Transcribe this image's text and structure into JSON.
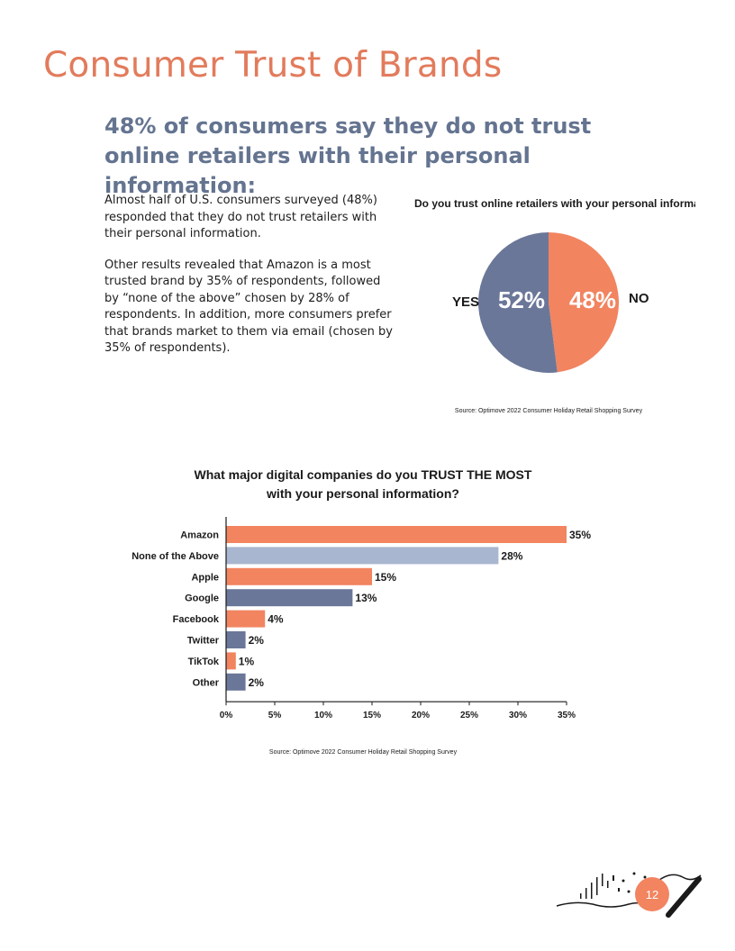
{
  "page": {
    "title": "Consumer Trust of Brands",
    "subtitle": "48% of consumers say they do not trust online retailers with their personal information:",
    "paragraphs": [
      "Almost half of U.S. consumers surveyed (48%) responded that they do not trust retailers with their personal information.",
      "Other results revealed that Amazon is a most trusted brand by 35% of respondents, followed by “none of the above” chosen by  28% of respondents. In addition, more consumers prefer that brands market to them via email (chosen by 35% of respondents)."
    ],
    "page_number": "12"
  },
  "colors": {
    "title": "#e27b5c",
    "subtitle": "#647490",
    "orange": "#f28460",
    "slate": "#6b7799",
    "light_slate": "#a9b6cf"
  },
  "chart_data": [
    {
      "type": "pie",
      "title": "Do you trust online retailers with your personal information?",
      "labels": [
        "YES",
        "NO"
      ],
      "values": [
        52,
        48
      ],
      "value_labels": [
        "52%",
        "48%"
      ],
      "colors": [
        "#6b7799",
        "#f28460"
      ],
      "source": "Source: Optimove 2022 Consumer Holiday Retail Shopping Survey"
    },
    {
      "type": "bar",
      "orientation": "horizontal",
      "title_lines": [
        "What major digital companies do you TRUST THE MOST",
        "with your personal information?"
      ],
      "categories": [
        "Amazon",
        "None of the Above",
        "Apple",
        "Google",
        "Facebook",
        "Twitter",
        "TikTok",
        "Other"
      ],
      "values": [
        35,
        28,
        15,
        13,
        4,
        2,
        1,
        2
      ],
      "value_labels": [
        "35%",
        "28%",
        "15%",
        "13%",
        "4%",
        "2%",
        "1%",
        "2%"
      ],
      "bar_colors": [
        "#f28460",
        "#a9b6cf",
        "#f28460",
        "#6b7799",
        "#f28460",
        "#6b7799",
        "#f28460",
        "#6b7799"
      ],
      "xlim": [
        0,
        35
      ],
      "xticks": [
        "0%",
        "5%",
        "10%",
        "15%",
        "20%",
        "25%",
        "30%",
        "35%"
      ],
      "source": "Source: Optimove 2022 Consumer Holiday Retail Shopping Survey"
    }
  ]
}
